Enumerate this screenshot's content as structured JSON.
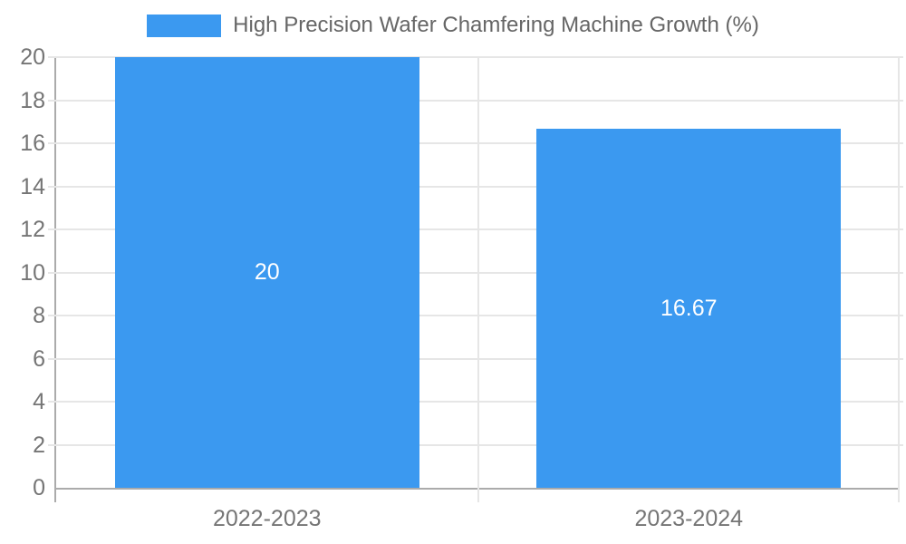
{
  "chart_data": {
    "type": "bar",
    "title": "High Precision Wafer Chamfering Machine Growth (%)",
    "categories": [
      "2022-2023",
      "2023-2024"
    ],
    "values": [
      20,
      16.67
    ],
    "bar_labels": [
      "20",
      "16.67"
    ],
    "xlabel": "",
    "ylabel": "",
    "ylim": [
      0,
      20
    ],
    "yticks": [
      0,
      2,
      4,
      6,
      8,
      10,
      12,
      14,
      16,
      18,
      20
    ],
    "grid": true,
    "legend_position": "top-center",
    "colors": {
      "bar": "#3B99F0",
      "grid": "#E6E6E6",
      "axis": "#ABABAB",
      "tick_text": "#757575",
      "title_text": "#666666",
      "bar_label_text": "#FFFFFF"
    }
  }
}
